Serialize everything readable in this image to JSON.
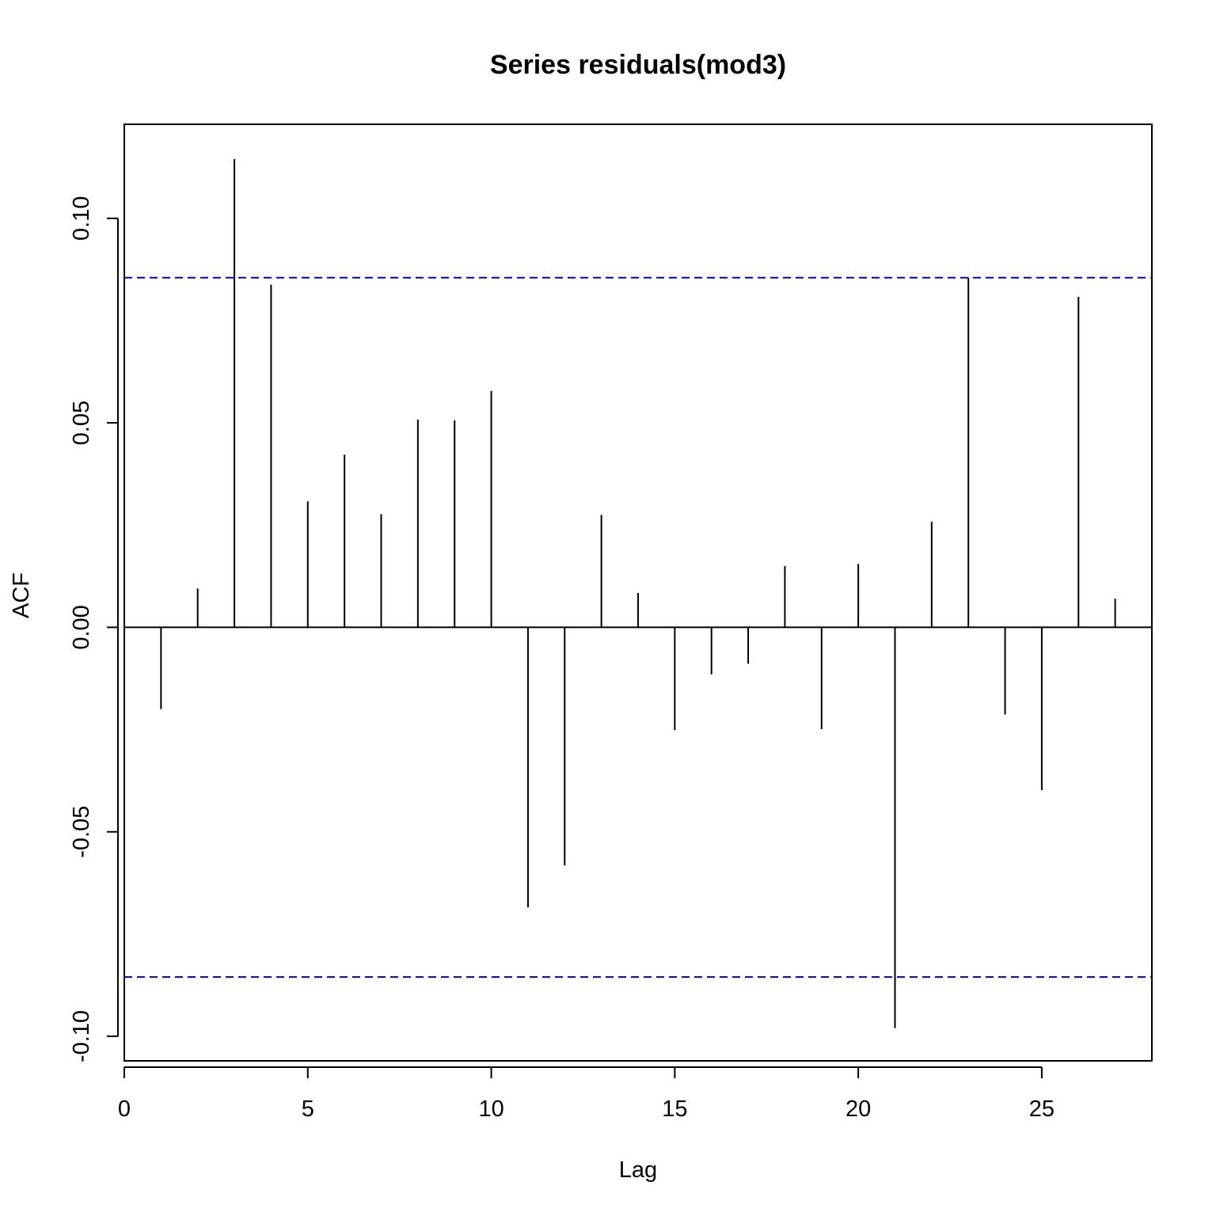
{
  "chart_data": {
    "type": "bar",
    "title": "Series residuals(mod3)",
    "xlabel": "Lag",
    "ylabel": "ACF",
    "xlim": [
      0,
      28
    ],
    "ylim": [
      -0.106,
      0.123
    ],
    "x_ticks": [
      "0",
      "5",
      "10",
      "15",
      "20",
      "25"
    ],
    "y_ticks": [
      "-0.10",
      "-0.05",
      "0.00",
      "0.05",
      "0.10"
    ],
    "confidence_bounds": [
      0.0855,
      -0.0855
    ],
    "colors": {
      "bars": "#000000",
      "bounds": "#0000cc",
      "frame": "#000000"
    },
    "grid": false,
    "series": [
      {
        "lags": [
          1,
          2,
          3,
          4,
          5,
          6,
          7,
          8,
          9,
          10,
          11,
          12,
          13,
          14,
          15,
          16,
          17,
          18,
          19,
          20,
          21,
          22,
          23,
          24,
          25,
          26,
          27
        ],
        "values": [
          -0.02,
          0.0095,
          0.1145,
          0.0838,
          0.0308,
          0.0422,
          0.0277,
          0.0508,
          0.0506,
          0.0578,
          -0.0685,
          -0.0582,
          0.0275,
          0.0084,
          -0.0251,
          -0.0115,
          -0.0089,
          0.015,
          -0.0249,
          0.0155,
          -0.098,
          0.0258,
          0.0855,
          -0.0213,
          -0.0398,
          0.0808,
          0.007
        ]
      }
    ]
  }
}
